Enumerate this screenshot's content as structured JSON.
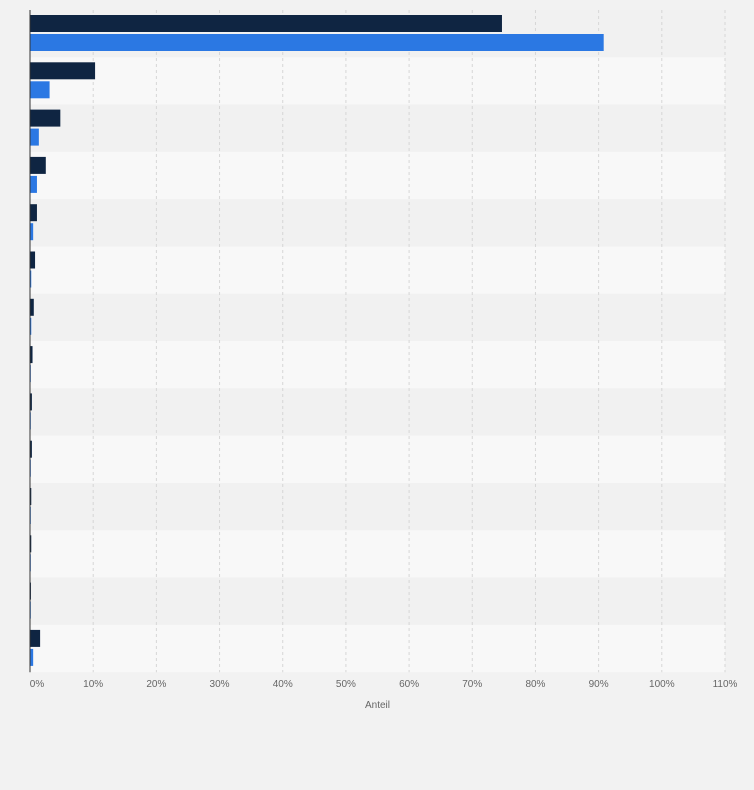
{
  "colors": {
    "series1": "#0f2542",
    "series2": "#2b78e3",
    "band_dark": "#f1f1f1",
    "band_light": "#f8f8f8",
    "grid": "#d6d6d6"
  },
  "chart_data": {
    "type": "bar",
    "orientation": "horizontal",
    "xlabel": "Anteil",
    "xlim": [
      0,
      110
    ],
    "ticks": [
      0,
      10,
      20,
      30,
      40,
      50,
      60,
      70,
      80,
      90,
      100,
      110
    ],
    "tick_labels": [
      "0%",
      "10%",
      "20%",
      "30%",
      "40%",
      "50%",
      "60%",
      "70%",
      "80%",
      "90%",
      "100%",
      "110%"
    ],
    "grid": true,
    "legend": "none",
    "series": [
      {
        "values": [
          74.7,
          10.3,
          4.8,
          2.5,
          1.1,
          0.8,
          0.6,
          0.4,
          0.3,
          0.3,
          0.2,
          0.2,
          0.15,
          1.6
        ]
      },
      {
        "values": [
          90.8,
          3.1,
          1.4,
          1.1,
          0.5,
          0.2,
          0.2,
          0.05,
          0.05,
          0.05,
          0.05,
          0.05,
          0.05,
          0.5
        ]
      }
    ]
  }
}
